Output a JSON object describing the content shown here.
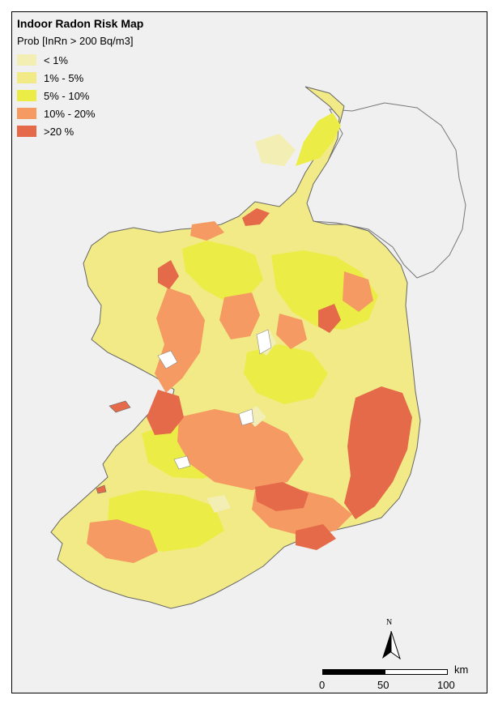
{
  "map": {
    "title": "Indoor Radon Risk Map",
    "legend_title": "Prob [InRn > 200 Bq/m3]",
    "legend": [
      {
        "label": "< 1%",
        "color": "#f2eeb4"
      },
      {
        "label": "1% - 5%",
        "color": "#f1ea86"
      },
      {
        "label": "5% - 10%",
        "color": "#ecec46"
      },
      {
        "label": "10% - 20%",
        "color": "#f59a62"
      },
      {
        "label": ">20 %",
        "color": "#e56a4a"
      }
    ],
    "north_label": "N",
    "scale": {
      "unit": "km",
      "ticks": [
        "0",
        "50",
        "100"
      ]
    },
    "background_color": "#f0f0f0",
    "northern_ireland_color": "#f0f0f0"
  }
}
